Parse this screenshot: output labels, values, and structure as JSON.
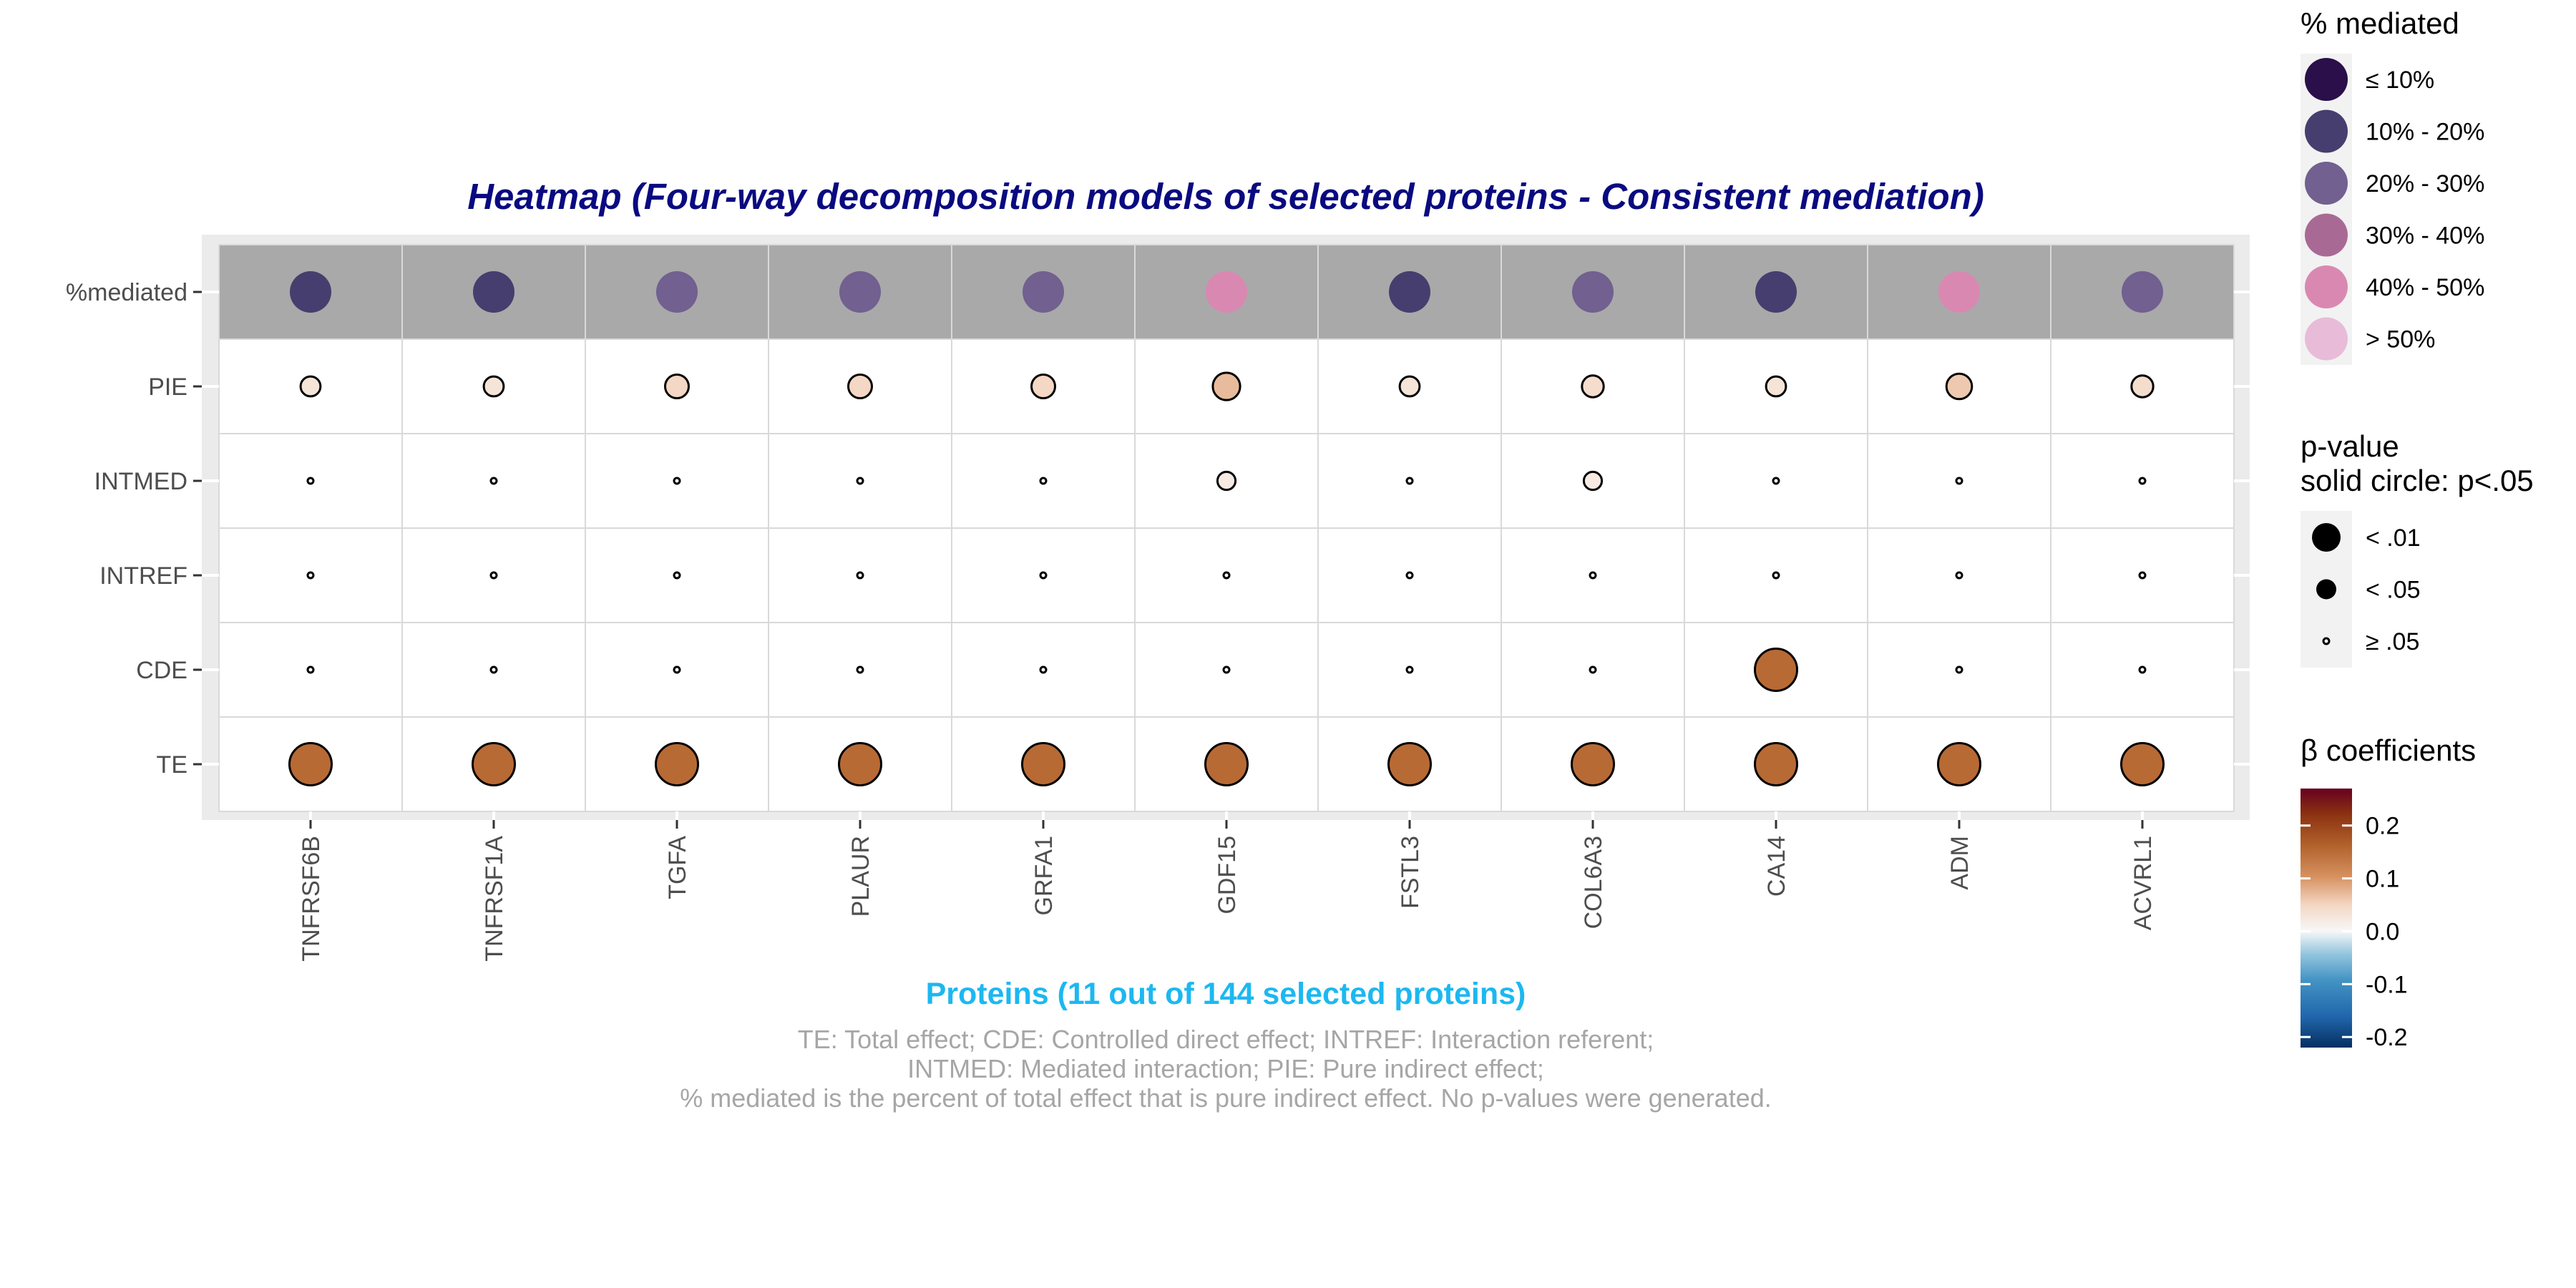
{
  "chart_data": {
    "type": "heatmap",
    "title": "Heatmap (Four-way decomposition models of selected proteins - Consistent mediation)",
    "xlabel": "Proteins (11 out of 144 selected proteins)",
    "caption": [
      "TE: Total effect; CDE: Controlled direct effect; INTREF: Interaction referent;",
      "INTMED: Mediated interaction; PIE: Pure indirect effect;",
      "% mediated is the percent of total effect that is pure indirect effect. No p-values were generated."
    ],
    "proteins": [
      "TNFRSF6B",
      "TNFRSF1A",
      "TGFA",
      "PLAUR",
      "GRFA1",
      "GDF15",
      "FSTL3",
      "COL6A3",
      "CA14",
      "ADM",
      "ACVRL1"
    ],
    "rows": [
      "%mediated",
      "PIE",
      "INTMED",
      "INTREF",
      "CDE",
      "TE"
    ],
    "pct_mediated_bin": [
      1,
      1,
      2,
      2,
      2,
      4,
      1,
      2,
      1,
      4,
      2
    ],
    "effects": [
      {
        "name": "PIE",
        "beta": [
          0.03,
          0.03,
          0.05,
          0.05,
          0.05,
          0.07,
          0.03,
          0.04,
          0.03,
          0.06,
          0.04
        ],
        "pvalue_class": [
          1,
          1,
          0,
          0,
          0,
          0,
          1,
          0,
          1,
          0,
          0
        ]
      },
      {
        "name": "INTMED",
        "beta": [
          0,
          0,
          0,
          0,
          0,
          0.02,
          0,
          0.02,
          0,
          0,
          0
        ],
        "pvalue_class": [
          2,
          2,
          2,
          2,
          2,
          1,
          2,
          1,
          2,
          2,
          2
        ]
      },
      {
        "name": "INTREF",
        "beta": [
          0,
          0,
          0,
          0,
          0,
          0,
          0,
          0,
          0,
          0,
          0
        ],
        "pvalue_class": [
          2,
          2,
          2,
          2,
          2,
          2,
          2,
          2,
          2,
          2,
          2
        ]
      },
      {
        "name": "CDE",
        "beta": [
          0,
          0,
          0,
          0,
          0,
          0,
          0,
          0,
          0.15,
          0,
          0
        ],
        "pvalue_class": [
          2,
          2,
          2,
          2,
          2,
          2,
          2,
          2,
          1,
          2,
          2
        ]
      },
      {
        "name": "TE",
        "beta": [
          0.15,
          0.15,
          0.15,
          0.15,
          0.15,
          0.15,
          0.15,
          0.15,
          0.15,
          0.15,
          0.15
        ],
        "pvalue_class": [
          0,
          0,
          0,
          0,
          0,
          1,
          0,
          0,
          1,
          0,
          0
        ]
      }
    ],
    "legend_mediated": {
      "title": "% mediated",
      "labels": [
        "≤ 10%",
        "10% - 20%",
        "20% - 30%",
        "30% - 40%",
        "40% - 50%",
        "> 50%"
      ],
      "colors": [
        "#2a0f4a",
        "#463e6e",
        "#716090",
        "#a86a95",
        "#d989b1",
        "#e8bcd8"
      ]
    },
    "legend_pvalue": {
      "title_lines": [
        "p-value",
        "solid circle: p<.05"
      ],
      "labels": [
        "< .01",
        "< .05",
        "≥ .05"
      ]
    },
    "legend_beta": {
      "title": "β coefficients",
      "ticks": [
        0.2,
        0.1,
        0.0,
        -0.1,
        -0.2
      ],
      "tick_labels": [
        "0.2",
        "0.1",
        "0.0",
        "-0.1",
        "-0.2"
      ],
      "range": [
        -0.22,
        0.27
      ]
    },
    "colors": {
      "panel_bg": "#ebebeb",
      "mediated_band": "#a9a9a9",
      "grid": "#d9d9d9",
      "beta_scale": [
        "#053061",
        "#2166ac",
        "#4393c3",
        "#92c5de",
        "#f7f7f7",
        "#f4d7c4",
        "#d6915f",
        "#b2622c",
        "#8c3211",
        "#67001f"
      ]
    }
  }
}
